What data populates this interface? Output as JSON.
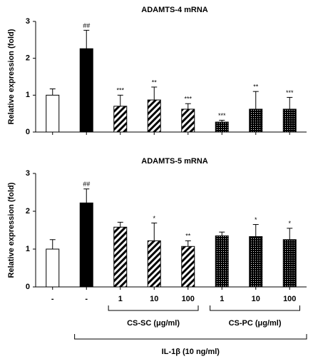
{
  "chart_data": [
    {
      "type": "bar",
      "title": "ADAMTS-4 mRNA",
      "ylabel": "Relative expression (fold)",
      "ylim": [
        0,
        3
      ],
      "yticks": [
        0,
        1,
        2,
        3
      ],
      "values": [
        1.0,
        2.26,
        0.7,
        0.87,
        0.62,
        0.27,
        0.62,
        0.62
      ],
      "errors": [
        0.17,
        0.5,
        0.3,
        0.35,
        0.15,
        0.05,
        0.48,
        0.32
      ],
      "annotations": [
        null,
        "##",
        "***",
        "**",
        "***",
        "***",
        "**",
        "***"
      ],
      "fills": [
        "white",
        "black",
        "hatch",
        "hatch",
        "hatch",
        "dots",
        "dots",
        "dots"
      ]
    },
    {
      "type": "bar",
      "title": "ADAMTS-5 mRNA",
      "ylabel": "Relative expression (fold)",
      "ylim": [
        0,
        3
      ],
      "yticks": [
        0,
        1,
        2,
        3
      ],
      "categories": [
        "-",
        "-",
        "1",
        "10",
        "100",
        "1",
        "10",
        "100"
      ],
      "values": [
        1.0,
        2.22,
        1.58,
        1.22,
        1.07,
        1.35,
        1.33,
        1.25
      ],
      "errors": [
        0.25,
        0.37,
        0.13,
        0.47,
        0.15,
        0.1,
        0.32,
        0.3
      ],
      "annotations": [
        null,
        "##",
        null,
        "*",
        "**",
        null,
        "*",
        "*"
      ],
      "fills": [
        "white",
        "black",
        "hatch",
        "hatch",
        "hatch",
        "dots",
        "dots",
        "dots"
      ],
      "groups": [
        {
          "label": "CS-SC (μg/ml)",
          "start": 2,
          "end": 4
        },
        {
          "label": "CS-PC (μg/ml)",
          "start": 5,
          "end": 7
        },
        {
          "label": "IL-1β (10 ng/ml)",
          "start": 1,
          "end": 7
        }
      ]
    }
  ]
}
